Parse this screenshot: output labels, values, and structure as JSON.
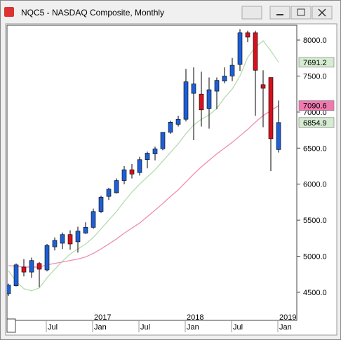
{
  "chart_data": {
    "type": "candlestick",
    "title": "NQC5 - NASDAQ Composite, Monthly",
    "categories": [
      null,
      null,
      null,
      null,
      null,
      "Jul",
      null,
      null,
      null,
      null,
      null,
      "Jan",
      null,
      null,
      null,
      null,
      null,
      "Jul",
      null,
      null,
      null,
      null,
      null,
      "Jan",
      null,
      null,
      null,
      null,
      null,
      "Jul",
      null,
      null,
      null,
      null,
      null,
      "Jan"
    ],
    "year_labels": [
      null,
      null,
      null,
      null,
      null,
      null,
      null,
      null,
      null,
      null,
      null,
      "2017",
      null,
      null,
      null,
      null,
      null,
      null,
      null,
      null,
      null,
      null,
      null,
      "2018",
      null,
      null,
      null,
      null,
      null,
      null,
      null,
      null,
      null,
      null,
      null,
      "2019"
    ],
    "open": [
      4480,
      4590,
      4850,
      4780,
      4900,
      4810,
      5130,
      5180,
      5300,
      5200,
      5320,
      5400,
      5620,
      5830,
      5880,
      6050,
      6200,
      6160,
      6340,
      6420,
      6490,
      6720,
      6830,
      6900,
      7260,
      7250,
      7050,
      7290,
      7430,
      7500,
      7660,
      8100,
      8100,
      7380,
      7480,
      6480
    ],
    "high": [
      4620,
      4900,
      4960,
      4980,
      4920,
      5170,
      5260,
      5330,
      5360,
      5410,
      5470,
      5660,
      5840,
      5950,
      6080,
      6250,
      6280,
      6380,
      6450,
      6520,
      6720,
      6880,
      6950,
      7600,
      7620,
      7560,
      7480,
      7480,
      7620,
      7750,
      8150,
      8130,
      8130,
      7580,
      7480,
      7160
    ],
    "low": [
      4450,
      4580,
      4720,
      4700,
      4570,
      4790,
      5080,
      5100,
      5090,
      5050,
      5310,
      5380,
      5600,
      5780,
      5870,
      6000,
      6080,
      6120,
      6220,
      6330,
      6470,
      6700,
      6800,
      6870,
      6610,
      6800,
      6770,
      7040,
      7400,
      7430,
      7570,
      7970,
      6950,
      6790,
      6180,
      6440
    ],
    "close": [
      4600,
      4880,
      4780,
      4940,
      4820,
      5150,
      5220,
      5300,
      5170,
      5350,
      5400,
      5620,
      5820,
      5930,
      6050,
      6200,
      6140,
      6340,
      6430,
      6490,
      6720,
      6860,
      6900,
      7420,
      7390,
      7030,
      7310,
      7440,
      7500,
      7650,
      8100,
      8040,
      7580,
      7330,
      6630,
      6854.9
    ],
    "up_color": "#1e5fd6",
    "down_color": "#d8101c",
    "last_label_color": "#d6ecd2",
    "overlays": [
      {
        "color": "#b5dcb0",
        "label_color": "#d6ecd2",
        "values": [
          4800,
          4650,
          4550,
          4520,
          4560,
          4700,
          4820,
          4930,
          5030,
          5100,
          5170,
          5260,
          5380,
          5500,
          5620,
          5760,
          5890,
          6000,
          6100,
          6200,
          6320,
          6440,
          6560,
          6700,
          6820,
          6900,
          6960,
          7050,
          7200,
          7320,
          7500,
          7760,
          7900,
          7990,
          7850,
          7691.2
        ]
      },
      {
        "color": "#f08cb4",
        "label_color": "#f07ab0",
        "values": [
          4870,
          4860,
          4850,
          4850,
          4850,
          4880,
          4900,
          4920,
          4940,
          4960,
          4990,
          5040,
          5100,
          5170,
          5240,
          5320,
          5390,
          5460,
          5550,
          5640,
          5730,
          5830,
          5920,
          6030,
          6140,
          6240,
          6330,
          6420,
          6500,
          6580,
          6670,
          6760,
          6860,
          6950,
          7020,
          7090.6
        ]
      }
    ],
    "ylim": [
      4110,
      8205
    ],
    "yticks": [
      {
        "value": 4500,
        "label": "4500.0"
      },
      {
        "value": 5000,
        "label": "5000.0"
      },
      {
        "value": 5500,
        "label": "5500.0"
      },
      {
        "value": 6000,
        "label": "6000.0"
      },
      {
        "value": 6500,
        "label": "6500.0"
      },
      {
        "value": 7000,
        "label": "7000.0"
      },
      {
        "value": 7500,
        "label": "7500.0"
      },
      {
        "value": 8000,
        "label": "8000.0"
      }
    ]
  }
}
